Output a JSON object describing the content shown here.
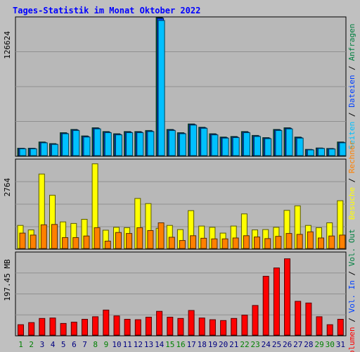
{
  "title": "Tages-Statistik im Monat Oktober 2022",
  "colors": {
    "background": "#c0c0c0",
    "panel_bg": "#b8b8b8",
    "grid": "#909090",
    "title": "#0000ff",
    "hits": "#008040",
    "files": "#0040ff",
    "pages": "#00c0ff",
    "visits": "#ffff00",
    "sites": "#ff8000",
    "kbytes": "#ff0000",
    "weekday_label": "#000080",
    "weekend_label": "#008000"
  },
  "right_labels": {
    "top": [
      "Seiten",
      "Dateien",
      "Anfragen"
    ],
    "middle": [
      "Besuche",
      "Rechner"
    ],
    "bottom": [
      "Volumen",
      "Vol. In",
      "Vol. Out"
    ]
  },
  "chart_data": [
    {
      "type": "bar",
      "panel": "top",
      "y_label": "126624",
      "ylim": [
        0,
        126624
      ],
      "categories": [
        "1",
        "2",
        "3",
        "4",
        "5",
        "6",
        "7",
        "8",
        "9",
        "10",
        "11",
        "12",
        "13",
        "14",
        "15",
        "16",
        "17",
        "18",
        "19",
        "20",
        "21",
        "22",
        "23",
        "24",
        "25",
        "26",
        "27",
        "28",
        "29",
        "30",
        "31"
      ],
      "weekend_days": [
        "1",
        "2",
        "8",
        "9",
        "15",
        "16",
        "22",
        "23",
        "29",
        "30"
      ],
      "series": [
        {
          "name": "Anfragen",
          "color": "#008040",
          "values": [
            6700,
            6700,
            12500,
            11000,
            21000,
            24000,
            18000,
            25500,
            22000,
            20000,
            22000,
            22000,
            23000,
            126624,
            24000,
            21000,
            29000,
            26000,
            20000,
            17000,
            17500,
            22000,
            18500,
            16500,
            24000,
            25500,
            17000,
            5700,
            7000,
            6500,
            12500
          ]
        },
        {
          "name": "Dateien",
          "color": "#0040ff",
          "values": [
            6500,
            6500,
            12000,
            10500,
            20500,
            23500,
            17500,
            25000,
            21500,
            19500,
            21500,
            21500,
            22500,
            126000,
            23500,
            20500,
            28500,
            25500,
            19500,
            16500,
            17000,
            21500,
            18000,
            16000,
            23500,
            25000,
            16500,
            5500,
            6800,
            6300,
            12000
          ]
        },
        {
          "name": "Seiten",
          "color": "#00c0ff",
          "values": [
            6200,
            6200,
            11700,
            10200,
            20000,
            23000,
            17000,
            24500,
            21000,
            19000,
            21000,
            21000,
            22000,
            124000,
            23000,
            20000,
            28000,
            25000,
            19000,
            16000,
            16500,
            21000,
            17500,
            15500,
            23000,
            24500,
            16000,
            5200,
            6500,
            6000,
            11700
          ]
        }
      ]
    },
    {
      "type": "bar",
      "panel": "middle",
      "y_label": "2764",
      "ylim": [
        0,
        2764
      ],
      "categories": [
        "1",
        "2",
        "3",
        "4",
        "5",
        "6",
        "7",
        "8",
        "9",
        "10",
        "11",
        "12",
        "13",
        "14",
        "15",
        "16",
        "17",
        "18",
        "19",
        "20",
        "21",
        "22",
        "23",
        "24",
        "25",
        "26",
        "27",
        "28",
        "29",
        "30",
        "31"
      ],
      "series": [
        {
          "name": "Besuche",
          "color": "#ffff00",
          "values": [
            720,
            580,
            2320,
            1660,
            830,
            780,
            910,
            2640,
            570,
            660,
            650,
            1560,
            1400,
            630,
            720,
            590,
            1180,
            700,
            660,
            480,
            700,
            1080,
            580,
            590,
            660,
            1190,
            1330,
            720,
            650,
            800,
            1490
          ]
        },
        {
          "name": "Rechner",
          "color": "#ff8000",
          "values": [
            480,
            420,
            740,
            750,
            340,
            340,
            390,
            650,
            230,
            500,
            470,
            650,
            560,
            800,
            350,
            250,
            400,
            320,
            300,
            300,
            330,
            400,
            360,
            310,
            380,
            470,
            440,
            520,
            330,
            390,
            420
          ]
        }
      ]
    },
    {
      "type": "bar",
      "panel": "bottom",
      "y_label": "197.45 MB",
      "ylim": [
        0,
        197.45
      ],
      "unit": "MB",
      "categories": [
        "1",
        "2",
        "3",
        "4",
        "5",
        "6",
        "7",
        "8",
        "9",
        "10",
        "11",
        "12",
        "13",
        "14",
        "15",
        "16",
        "17",
        "18",
        "19",
        "20",
        "21",
        "22",
        "23",
        "24",
        "25",
        "26",
        "27",
        "28",
        "29",
        "30",
        "31"
      ],
      "series": [
        {
          "name": "Volumen",
          "color": "#ff0000",
          "values": [
            25,
            30,
            40,
            41,
            28,
            31,
            38,
            44,
            60,
            46,
            38,
            37,
            43,
            57,
            43,
            40,
            59,
            41,
            37,
            35,
            40,
            48,
            71,
            141,
            161,
            183,
            81,
            77,
            44,
            25,
            38
          ]
        }
      ]
    }
  ]
}
